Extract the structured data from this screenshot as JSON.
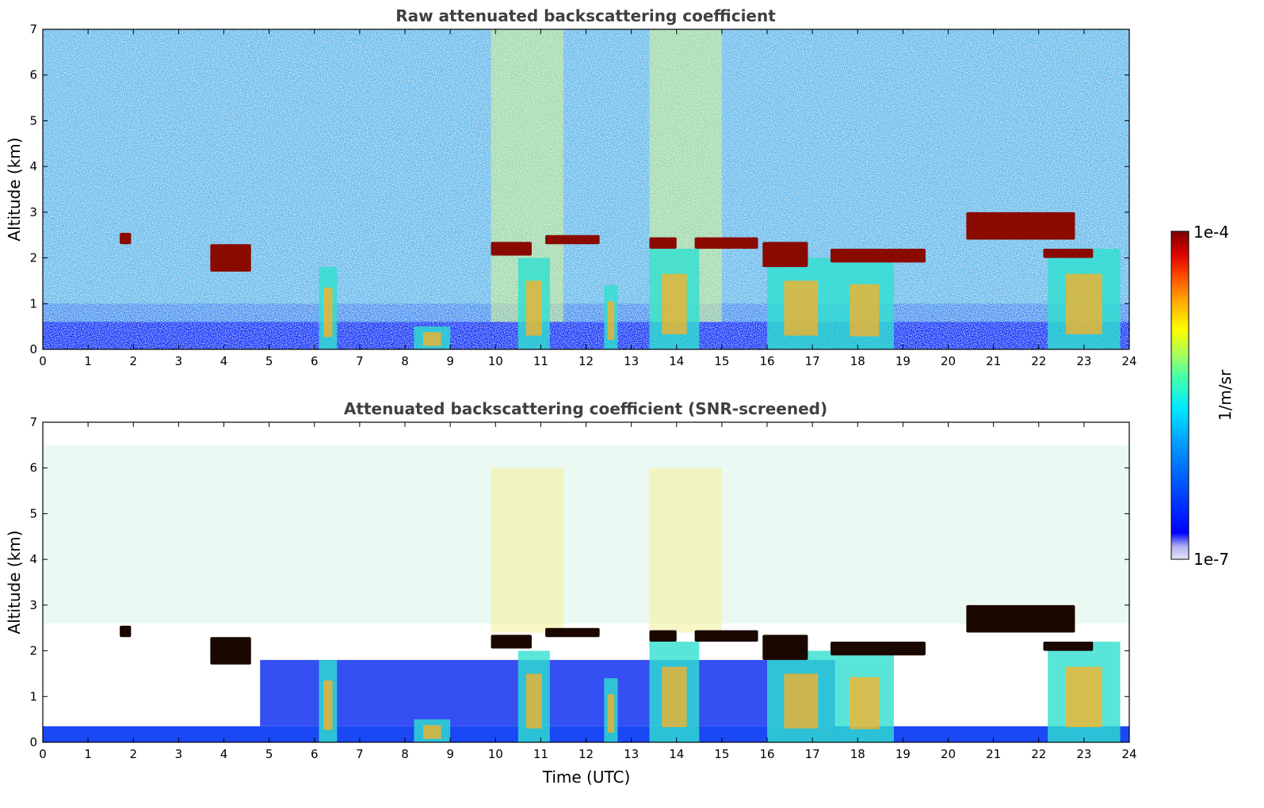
{
  "chart_data": [
    {
      "type": "heatmap",
      "title": "Raw attenuated backscattering coefficient",
      "xlabel": "",
      "ylabel": "Altitude (km)",
      "xlim": [
        0,
        24
      ],
      "ylim": [
        0,
        7
      ],
      "xticks": [
        0,
        1,
        2,
        3,
        4,
        5,
        6,
        7,
        8,
        9,
        10,
        11,
        12,
        13,
        14,
        15,
        16,
        17,
        18,
        19,
        20,
        21,
        22,
        23,
        24
      ],
      "yticks": [
        0,
        1,
        2,
        3,
        4,
        5,
        6,
        7
      ],
      "screened": false,
      "cloud_layers": [
        {
          "t": [
            1.7,
            1.95
          ],
          "alt": [
            2.3,
            2.55
          ]
        },
        {
          "t": [
            3.7,
            4.6
          ],
          "alt": [
            1.7,
            2.3
          ]
        },
        {
          "t": [
            9.9,
            10.8
          ],
          "alt": [
            2.05,
            2.35
          ]
        },
        {
          "t": [
            11.1,
            12.3
          ],
          "alt": [
            2.3,
            2.5
          ]
        },
        {
          "t": [
            13.4,
            14.0
          ],
          "alt": [
            2.2,
            2.45
          ]
        },
        {
          "t": [
            14.4,
            15.8
          ],
          "alt": [
            2.2,
            2.45
          ]
        },
        {
          "t": [
            15.9,
            16.9
          ],
          "alt": [
            1.8,
            2.35
          ]
        },
        {
          "t": [
            17.4,
            19.5
          ],
          "alt": [
            1.9,
            2.2
          ]
        },
        {
          "t": [
            20.4,
            22.8
          ],
          "alt": [
            2.4,
            3.0
          ]
        },
        {
          "t": [
            22.1,
            23.2
          ],
          "alt": [
            2.0,
            2.2
          ]
        }
      ],
      "precipitation_shafts": [
        {
          "t": [
            6.1,
            6.5
          ],
          "alt_top": 1.8
        },
        {
          "t": [
            8.2,
            9.0
          ],
          "alt_top": 0.5
        },
        {
          "t": [
            10.5,
            11.2
          ],
          "alt_top": 2.0
        },
        {
          "t": [
            12.4,
            12.7
          ],
          "alt_top": 1.4
        },
        {
          "t": [
            13.4,
            14.5
          ],
          "alt_top": 2.2
        },
        {
          "t": [
            16.0,
            17.5
          ],
          "alt_top": 2.0
        },
        {
          "t": [
            17.5,
            18.8
          ],
          "alt_top": 1.9
        },
        {
          "t": [
            22.2,
            23.8
          ],
          "alt_top": 2.2
        }
      ]
    },
    {
      "type": "heatmap",
      "title": "Attenuated backscattering coefficient (SNR-screened)",
      "xlabel": "Time (UTC)",
      "ylabel": "Altitude (km)",
      "xlim": [
        0,
        24
      ],
      "ylim": [
        0,
        7
      ],
      "xticks": [
        0,
        1,
        2,
        3,
        4,
        5,
        6,
        7,
        8,
        9,
        10,
        11,
        12,
        13,
        14,
        15,
        16,
        17,
        18,
        19,
        20,
        21,
        22,
        23,
        24
      ],
      "yticks": [
        0,
        1,
        2,
        3,
        4,
        5,
        6,
        7
      ],
      "screened": true
    }
  ],
  "colorbar": {
    "label": "1/m/sr",
    "min_label": "1e-7",
    "max_label": "1e-4",
    "scale": "log",
    "colormap": [
      "#e6e6fa",
      "#b0b0f0",
      "#0000ff",
      "#0040ff",
      "#0080ff",
      "#00c0ff",
      "#00ffff",
      "#40ffc0",
      "#80ff80",
      "#c0ff40",
      "#ffff00",
      "#ffc000",
      "#ff8000",
      "#ff4000",
      "#ff0000",
      "#c00000",
      "#800000"
    ]
  }
}
